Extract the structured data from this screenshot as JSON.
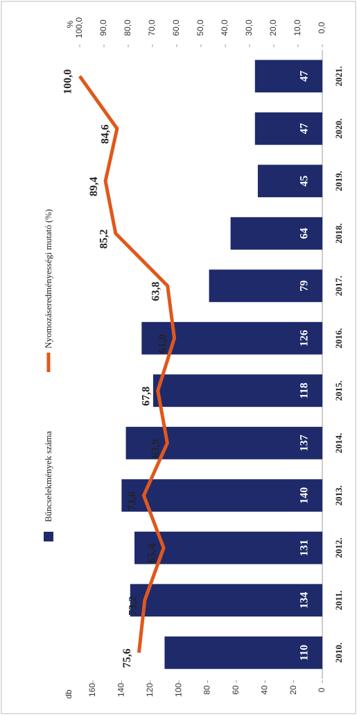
{
  "chart_data": {
    "type": "bar-line",
    "categories": [
      "2010.",
      "2011.",
      "2012.",
      "2013.",
      "2014.",
      "2015.",
      "2016.",
      "2017.",
      "2018.",
      "2019.",
      "2020.",
      "2021."
    ],
    "series": [
      {
        "name": "Bűncselekmények száma",
        "type": "bar",
        "color": "#1f2a6b",
        "values": [
          110,
          134,
          131,
          140,
          137,
          118,
          126,
          79,
          64,
          45,
          47,
          47
        ]
      },
      {
        "name": "Nyomozáseredményességi mutató (%)",
        "type": "line",
        "axis": "y2",
        "color": "#e0581c",
        "values": [
          75.6,
          73.2,
          65.4,
          73.6,
          63.9,
          67.8,
          61.0,
          63.8,
          85.2,
          89.4,
          84.6,
          100.0
        ],
        "value_labels": [
          "75,6",
          "73,2",
          "65,4",
          "73,6",
          "63,9",
          "67,8",
          "61,0",
          "63,8",
          "85,2",
          "89,4",
          "84,6",
          "100,0"
        ]
      }
    ],
    "ylabel": "db",
    "y2label": "%",
    "ylim": [
      0,
      160
    ],
    "yticks": [
      0,
      20,
      40,
      60,
      80,
      100,
      120,
      140,
      160
    ],
    "y2lim": [
      0,
      100
    ],
    "y2ticks": [
      {
        "value": 0,
        "label": "0,0"
      },
      {
        "value": 10,
        "label": "10,0"
      },
      {
        "value": 20,
        "label": "20,0"
      },
      {
        "value": 30,
        "label": "30,0"
      },
      {
        "value": 40,
        "label": "40,0"
      },
      {
        "value": 50,
        "label": "50,0"
      },
      {
        "value": 60,
        "label": "60,0"
      },
      {
        "value": 70,
        "label": "70,0"
      },
      {
        "value": 80,
        "label": "80,0"
      },
      {
        "value": 90,
        "label": "90,0"
      },
      {
        "value": 100,
        "label": "100,0"
      }
    ],
    "legend": "top"
  }
}
